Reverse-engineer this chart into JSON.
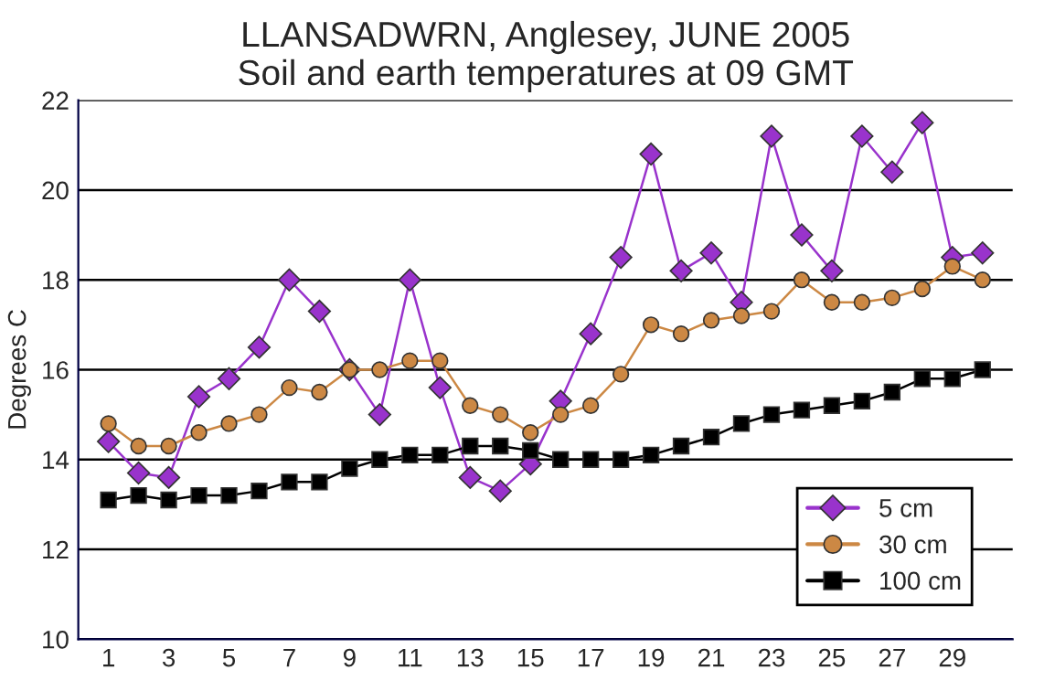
{
  "chart_data": {
    "type": "line",
    "title": "LLANSADWRN, Anglesey, JUNE 2005\nSoil and earth temperatures at 09 GMT",
    "ylabel": "Degrees C",
    "x": [
      1,
      2,
      3,
      4,
      5,
      6,
      7,
      8,
      9,
      10,
      11,
      12,
      13,
      14,
      15,
      16,
      17,
      18,
      19,
      20,
      21,
      22,
      23,
      24,
      25,
      26,
      27,
      28,
      29,
      30
    ],
    "series": [
      {
        "name": "5 cm",
        "color": "#9933cc",
        "marker": "diamond",
        "values": [
          14.4,
          13.7,
          13.6,
          15.4,
          15.8,
          16.5,
          18.0,
          17.3,
          16.0,
          15.0,
          18.0,
          15.6,
          13.6,
          13.3,
          13.9,
          15.3,
          16.8,
          18.5,
          20.8,
          18.2,
          18.6,
          17.5,
          21.2,
          19.0,
          18.2,
          21.2,
          20.4,
          21.5,
          18.5,
          18.6
        ]
      },
      {
        "name": "30 cm",
        "color": "#cc8844",
        "marker": "circle",
        "values": [
          14.8,
          14.3,
          14.3,
          14.6,
          14.8,
          15.0,
          15.6,
          15.5,
          16.0,
          16.0,
          16.2,
          16.2,
          15.2,
          15.0,
          14.6,
          15.0,
          15.2,
          15.9,
          17.0,
          16.8,
          17.1,
          17.2,
          17.3,
          18.0,
          17.5,
          17.5,
          17.6,
          17.8,
          18.3,
          18.0
        ]
      },
      {
        "name": "100 cm",
        "color": "#000000",
        "marker": "square",
        "values": [
          13.1,
          13.2,
          13.1,
          13.2,
          13.2,
          13.3,
          13.5,
          13.5,
          13.8,
          14.0,
          14.1,
          14.1,
          14.3,
          14.3,
          14.2,
          14.0,
          14.0,
          14.0,
          14.1,
          14.3,
          14.5,
          14.8,
          15.0,
          15.1,
          15.2,
          15.3,
          15.5,
          15.8,
          15.8,
          16.0
        ]
      }
    ],
    "xlim": [
      0,
      31
    ],
    "xticks": [
      1,
      3,
      5,
      7,
      9,
      11,
      13,
      15,
      17,
      19,
      21,
      23,
      25,
      27,
      29
    ],
    "ylim": [
      10,
      22
    ],
    "yticks": [
      10,
      12,
      14,
      16,
      18,
      20,
      22
    ],
    "grid": "y",
    "legend": "bottom right",
    "line_style": "solid"
  }
}
